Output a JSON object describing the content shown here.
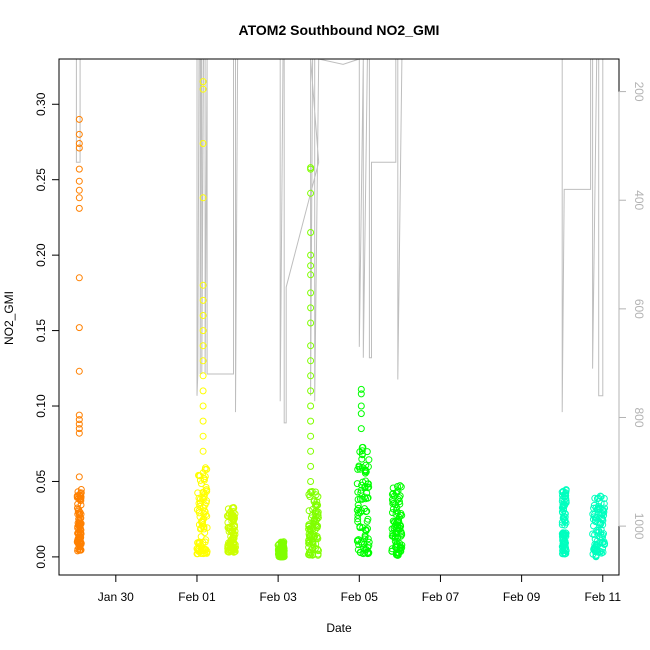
{
  "chart_data": {
    "type": "scatter",
    "title": "ATOM2 Southbound NO2_GMI",
    "xlabel": "Date",
    "ylabel": "NO2_GMI",
    "x_tick_labels": [
      "Jan 30",
      "Feb 01",
      "Feb 03",
      "Feb 05",
      "Feb 07",
      "Feb 09",
      "Feb 11"
    ],
    "x_tick_values": [
      30,
      32,
      34,
      36,
      38,
      40,
      42
    ],
    "xlim": [
      28.6,
      42.4
    ],
    "ylim": [
      -0.012,
      0.33
    ],
    "y_ticks": [
      0.0,
      0.05,
      0.1,
      0.15,
      0.2,
      0.25,
      0.3
    ],
    "y_tick_labels": [
      "0.00",
      "0.05",
      "0.10",
      "0.15",
      "0.20",
      "0.25",
      "0.30"
    ],
    "right_axis": {
      "label_color": "#b3b3b3",
      "ylim": [
        1090,
        140
      ],
      "ticks": [
        200,
        400,
        600,
        800,
        1000
      ],
      "tick_labels": [
        "200",
        "400",
        "600",
        "800",
        "1000"
      ]
    },
    "colors": {
      "orange": "#ff8000",
      "yellow": "#ffff00",
      "yellowgreen": "#ccff00",
      "lime": "#80ff00",
      "green": "#00ff00",
      "springgreen": "#00ff40",
      "cyan": "#00ffbf",
      "pressure_line": "#bebebe"
    },
    "series": [
      {
        "color": "#ff8000",
        "core_x": [
          29.05,
          29.15
        ],
        "core_y": [
          0.004,
          0.045
        ],
        "outliers": [
          [
            29.1,
            0.053
          ],
          [
            29.1,
            0.082
          ],
          [
            29.1,
            0.085
          ],
          [
            29.1,
            0.088
          ],
          [
            29.1,
            0.091
          ],
          [
            29.1,
            0.094
          ],
          [
            29.1,
            0.123
          ],
          [
            29.1,
            0.152
          ],
          [
            29.1,
            0.185
          ],
          [
            29.1,
            0.231
          ],
          [
            29.1,
            0.238
          ],
          [
            29.1,
            0.243
          ],
          [
            29.1,
            0.249
          ],
          [
            29.1,
            0.257
          ],
          [
            29.1,
            0.271
          ],
          [
            29.1,
            0.274
          ],
          [
            29.1,
            0.28
          ],
          [
            29.1,
            0.29
          ]
        ]
      },
      {
        "color": "#ffff00",
        "core_x": [
          32.0,
          32.25
        ],
        "core_y": [
          0.002,
          0.06
        ],
        "outliers": [
          [
            32.15,
            0.07
          ],
          [
            32.15,
            0.08
          ],
          [
            32.15,
            0.09
          ],
          [
            32.15,
            0.1
          ],
          [
            32.15,
            0.11
          ],
          [
            32.15,
            0.12
          ],
          [
            32.15,
            0.13
          ],
          [
            32.15,
            0.14
          ],
          [
            32.15,
            0.15
          ],
          [
            32.15,
            0.16
          ],
          [
            32.15,
            0.17
          ],
          [
            32.15,
            0.18
          ],
          [
            32.15,
            0.238
          ],
          [
            32.15,
            0.274
          ],
          [
            32.15,
            0.31
          ],
          [
            32.15,
            0.315
          ]
        ]
      },
      {
        "color": "#ccff00",
        "core_x": [
          32.75,
          32.95
        ],
        "core_y": [
          0.003,
          0.034
        ],
        "outliers": []
      },
      {
        "color": "#80ff00",
        "core_x": [
          34.0,
          34.15
        ],
        "core_y": [
          0.0,
          0.01
        ],
        "outliers": []
      },
      {
        "color": "#80ff00",
        "core_x": [
          34.75,
          35.0
        ],
        "core_y": [
          0.001,
          0.045
        ],
        "outliers": [
          [
            34.8,
            0.05
          ],
          [
            34.8,
            0.06
          ],
          [
            34.8,
            0.07
          ],
          [
            34.8,
            0.08
          ],
          [
            34.8,
            0.09
          ],
          [
            34.8,
            0.1
          ],
          [
            34.8,
            0.11
          ],
          [
            34.8,
            0.12
          ],
          [
            34.8,
            0.13
          ],
          [
            34.8,
            0.14
          ],
          [
            34.8,
            0.155
          ],
          [
            34.8,
            0.165
          ],
          [
            34.8,
            0.175
          ],
          [
            34.8,
            0.187
          ],
          [
            34.8,
            0.193
          ],
          [
            34.8,
            0.2
          ],
          [
            34.8,
            0.215
          ],
          [
            34.8,
            0.241
          ],
          [
            34.8,
            0.257
          ],
          [
            34.8,
            0.258
          ]
        ]
      },
      {
        "color": "#00ff00",
        "core_x": [
          35.95,
          36.25
        ],
        "core_y": [
          0.002,
          0.074
        ],
        "outliers": [
          [
            36.05,
            0.085
          ],
          [
            36.05,
            0.095
          ],
          [
            36.05,
            0.1
          ],
          [
            36.05,
            0.108
          ],
          [
            36.05,
            0.111
          ]
        ]
      },
      {
        "color": "#00ff00",
        "core_x": [
          36.8,
          37.05
        ],
        "core_y": [
          0.001,
          0.048
        ],
        "outliers": []
      },
      {
        "color": "#00ffbf",
        "core_x": [
          41.0,
          41.1
        ],
        "core_y": [
          0.002,
          0.045
        ],
        "outliers": []
      },
      {
        "color": "#00ffbf",
        "core_x": [
          41.75,
          42.05
        ],
        "core_y": [
          0.0,
          0.041
        ],
        "outliers": []
      }
    ],
    "pressure_trace": [
      [
        29.03,
        140
      ],
      [
        29.03,
        330
      ],
      [
        29.12,
        330
      ],
      [
        29.12,
        140
      ],
      [
        32.0,
        140
      ],
      [
        32.0,
        760
      ],
      [
        32.02,
        720
      ],
      [
        32.05,
        140
      ],
      [
        32.08,
        140
      ],
      [
        32.08,
        720
      ],
      [
        32.1,
        140
      ],
      [
        32.12,
        140
      ],
      [
        32.12,
        720
      ],
      [
        32.16,
        140
      ],
      [
        32.2,
        140
      ],
      [
        32.2,
        720
      ],
      [
        32.25,
        140
      ],
      [
        32.25,
        720
      ],
      [
        32.9,
        720
      ],
      [
        32.9,
        140
      ],
      [
        32.95,
        140
      ],
      [
        32.95,
        790
      ],
      [
        33.0,
        140
      ],
      [
        34.05,
        140
      ],
      [
        34.05,
        770
      ],
      [
        34.12,
        140
      ],
      [
        34.15,
        140
      ],
      [
        34.15,
        810
      ],
      [
        34.2,
        810
      ],
      [
        34.2,
        560
      ],
      [
        35.0,
        330
      ],
      [
        34.8,
        140
      ],
      [
        34.8,
        760
      ],
      [
        34.85,
        140
      ],
      [
        34.9,
        140
      ],
      [
        34.9,
        770
      ],
      [
        35.0,
        140
      ],
      [
        35.6,
        150
      ],
      [
        36.0,
        140
      ],
      [
        36.0,
        670
      ],
      [
        36.1,
        140
      ],
      [
        36.1,
        690
      ],
      [
        36.2,
        140
      ],
      [
        36.25,
        140
      ],
      [
        36.25,
        690
      ],
      [
        36.3,
        690
      ],
      [
        36.3,
        330
      ],
      [
        36.35,
        330
      ],
      [
        36.9,
        330
      ],
      [
        36.9,
        140
      ],
      [
        36.95,
        140
      ],
      [
        36.95,
        730
      ],
      [
        37.05,
        140
      ],
      [
        41.0,
        140
      ],
      [
        41.0,
        700
      ],
      [
        41.0,
        790
      ],
      [
        41.05,
        380
      ],
      [
        41.7,
        380
      ],
      [
        41.7,
        140
      ],
      [
        41.75,
        140
      ],
      [
        41.75,
        710
      ],
      [
        41.85,
        140
      ],
      [
        41.9,
        140
      ],
      [
        41.9,
        760
      ],
      [
        42.0,
        760
      ],
      [
        42.0,
        140
      ]
    ]
  }
}
